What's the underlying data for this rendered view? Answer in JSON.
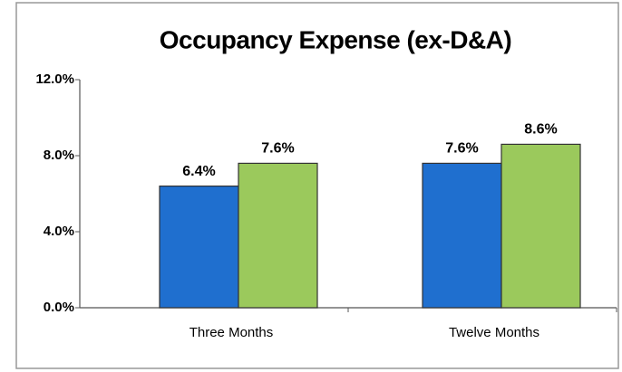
{
  "chart_data": {
    "type": "bar",
    "title": "Occupancy Expense (ex-D&A)",
    "categories": [
      "Three Months",
      "Twelve Months"
    ],
    "series": [
      {
        "color": "#1f6fcf",
        "values": [
          6.4,
          7.6
        ],
        "value_labels": [
          "6.4%",
          "7.6%"
        ]
      },
      {
        "color": "#9bc95c",
        "values": [
          7.6,
          8.6
        ],
        "value_labels": [
          "7.6%",
          "8.6%"
        ]
      }
    ],
    "ylim": [
      0,
      12
    ],
    "yticks": [
      {
        "value": 0,
        "label": "0.0%"
      },
      {
        "value": 4,
        "label": "4.0%"
      },
      {
        "value": 8,
        "label": "8.0%"
      },
      {
        "value": 12,
        "label": "12.0%"
      }
    ],
    "grid": false
  }
}
